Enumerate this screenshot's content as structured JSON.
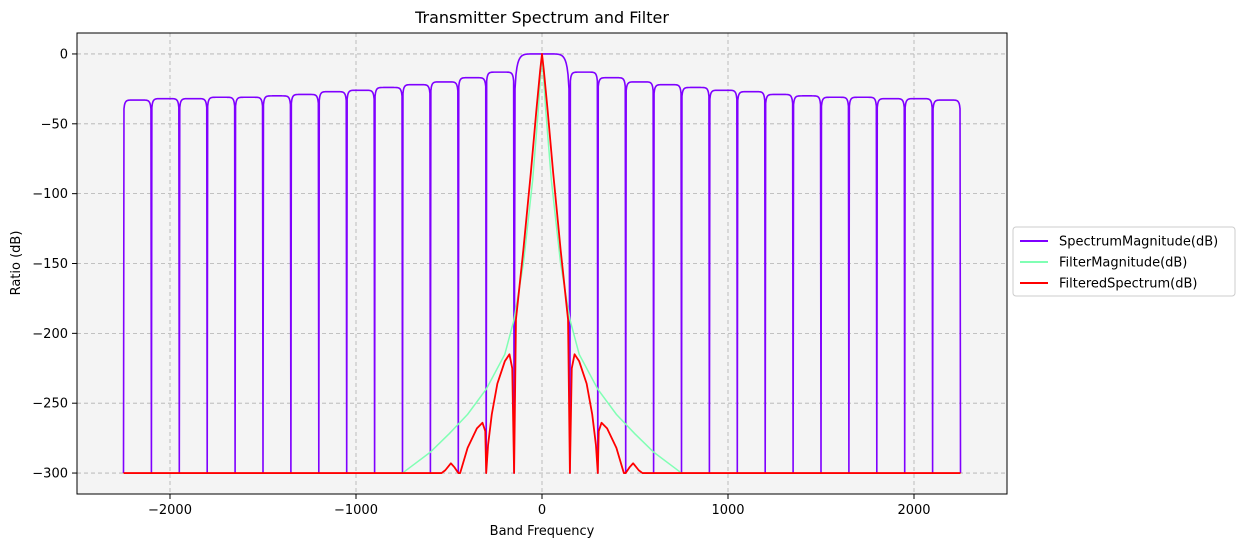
{
  "chart_data": {
    "type": "line",
    "title": "Transmitter Spectrum and Filter",
    "xlabel": "Band Frequency",
    "ylabel": "Ratio (dB)",
    "xlim": [
      -2500,
      2500
    ],
    "ylim": [
      -315,
      15
    ],
    "x_ticks": [
      -2000,
      -1000,
      0,
      1000,
      2000
    ],
    "x_tick_labels": [
      "−2000",
      "−1000",
      "0",
      "1000",
      "2000"
    ],
    "y_ticks": [
      0,
      -50,
      -100,
      -150,
      -200,
      -250,
      -300
    ],
    "y_tick_labels": [
      "0",
      "−50",
      "−100",
      "−150",
      "−200",
      "−250",
      "−300"
    ],
    "grid": true,
    "grid_style": "dashed",
    "background": "#f4f4f4",
    "legend_position": "outside-right",
    "series": [
      {
        "name": "SpectrumMagnitude(dB)",
        "color": "#7f00ff",
        "description_free": true,
        "x_range": [
          -2250,
          2250
        ],
        "null_spacing": 150,
        "floor": -300,
        "lobe_peaks": [
          {
            "x": -2175,
            "y": -33
          },
          {
            "x": -2025,
            "y": -32
          },
          {
            "x": -1875,
            "y": -32
          },
          {
            "x": -1725,
            "y": -31
          },
          {
            "x": -1575,
            "y": -31
          },
          {
            "x": -1425,
            "y": -30
          },
          {
            "x": -1275,
            "y": -29
          },
          {
            "x": -1125,
            "y": -27
          },
          {
            "x": -975,
            "y": -26
          },
          {
            "x": -825,
            "y": -24
          },
          {
            "x": -675,
            "y": -22
          },
          {
            "x": -525,
            "y": -20
          },
          {
            "x": -375,
            "y": -17
          },
          {
            "x": -225,
            "y": -13
          },
          {
            "x": 0,
            "y": 0
          },
          {
            "x": 225,
            "y": -13
          },
          {
            "x": 375,
            "y": -17
          },
          {
            "x": 525,
            "y": -20
          },
          {
            "x": 675,
            "y": -22
          },
          {
            "x": 825,
            "y": -24
          },
          {
            "x": 975,
            "y": -26
          },
          {
            "x": 1125,
            "y": -27
          },
          {
            "x": 1275,
            "y": -29
          },
          {
            "x": 1425,
            "y": -30
          },
          {
            "x": 1575,
            "y": -31
          },
          {
            "x": 1725,
            "y": -31
          },
          {
            "x": 1875,
            "y": -32
          },
          {
            "x": 2025,
            "y": -32
          },
          {
            "x": 2175,
            "y": -33
          }
        ]
      },
      {
        "name": "FilterMagnitude(dB)",
        "color": "#80ffb4",
        "x": [
          -750,
          -700,
          -600,
          -500,
          -400,
          -300,
          -200,
          -150,
          -100,
          -50,
          -20,
          0,
          20,
          50,
          100,
          150,
          200,
          300,
          400,
          500,
          600,
          700,
          750
        ],
        "y": [
          -300,
          -295,
          -285,
          -272,
          -258,
          -240,
          -215,
          -190,
          -150,
          -90,
          -40,
          0,
          -40,
          -90,
          -150,
          -190,
          -215,
          -240,
          -258,
          -272,
          -285,
          -295,
          -300
        ]
      },
      {
        "name": "FilteredSpectrum(dB)",
        "color": "#ff0000",
        "x": [
          -2250,
          -540,
          -520,
          -490,
          -470,
          -450,
          -440,
          -400,
          -350,
          -320,
          -305,
          -300,
          -290,
          -270,
          -240,
          -200,
          -175,
          -160,
          -150,
          -140,
          -100,
          -60,
          -30,
          -10,
          0,
          10,
          30,
          60,
          100,
          140,
          150,
          160,
          175,
          200,
          240,
          270,
          290,
          300,
          305,
          320,
          350,
          400,
          440,
          450,
          470,
          490,
          520,
          540,
          2250
        ],
        "y": [
          -300,
          -300,
          -298,
          -293,
          -296,
          -300,
          -300,
          -282,
          -268,
          -264,
          -270,
          -300,
          -280,
          -258,
          -236,
          -220,
          -215,
          -225,
          -300,
          -190,
          -140,
          -85,
          -40,
          -12,
          0,
          -12,
          -40,
          -85,
          -140,
          -190,
          -300,
          -225,
          -215,
          -220,
          -236,
          -258,
          -280,
          -300,
          -270,
          -264,
          -268,
          -282,
          -300,
          -300,
          -296,
          -293,
          -298,
          -300,
          -300
        ]
      }
    ]
  }
}
